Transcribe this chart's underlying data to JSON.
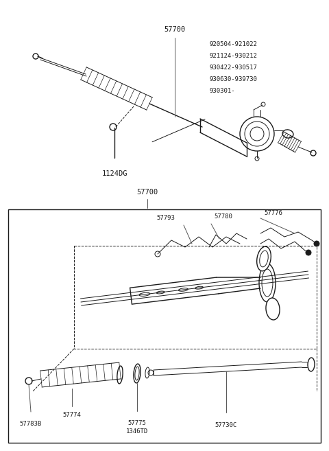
{
  "bg_color": "#ffffff",
  "line_color": "#1a1a1a",
  "fig_width": 4.8,
  "fig_height": 6.57,
  "dpi": 100,
  "top_date_codes": [
    "920504-921022",
    "921124-930212",
    "930422-930517",
    "930630-939730",
    "930301-"
  ]
}
